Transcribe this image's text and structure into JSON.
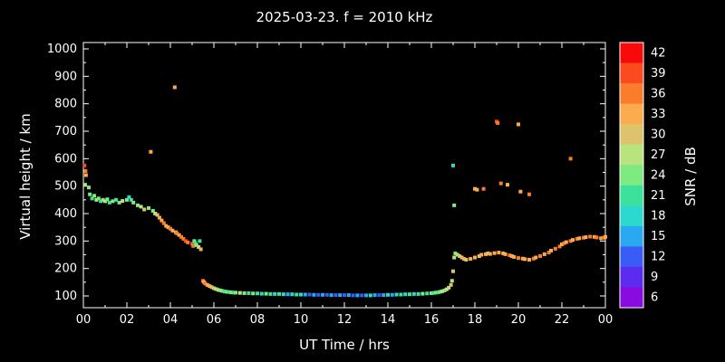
{
  "chart_data": {
    "type": "scatter",
    "title": "2025-03-23. f = 2010 kHz",
    "xlabel": "UT Time / hrs",
    "ylabel": "Virtual height / km",
    "xlim": [
      0,
      24
    ],
    "ylim": [
      50,
      1000
    ],
    "grid": false,
    "x_tick_values": [
      0,
      2,
      4,
      6,
      8,
      10,
      12,
      14,
      16,
      18,
      20,
      22,
      24
    ],
    "x_tick_labels": [
      "00",
      "02",
      "04",
      "06",
      "08",
      "10",
      "12",
      "14",
      "16",
      "18",
      "20",
      "22",
      "00"
    ],
    "y_tick_values": [
      100,
      200,
      300,
      400,
      500,
      600,
      700,
      800,
      900,
      1000
    ],
    "colorbar": {
      "label": "SNR / dB",
      "levels": [
        {
          "value": 42,
          "color": "#f80a0a"
        },
        {
          "value": 39,
          "color": "#fb4a1e"
        },
        {
          "value": 36,
          "color": "#fb7d2c"
        },
        {
          "value": 33,
          "color": "#fcab4e"
        },
        {
          "value": 30,
          "color": "#ddc46c"
        },
        {
          "value": 27,
          "color": "#b9e37f"
        },
        {
          "value": 24,
          "color": "#7fea7f"
        },
        {
          "value": 21,
          "color": "#3ce29b"
        },
        {
          "value": 18,
          "color": "#2cd9cf"
        },
        {
          "value": 15,
          "color": "#29aaf0"
        },
        {
          "value": 12,
          "color": "#3a5bf5"
        },
        {
          "value": 9,
          "color": "#5c2bf0"
        },
        {
          "value": 6,
          "color": "#8a0be0"
        }
      ]
    },
    "point_format": [
      "ut_hours",
      "virtual_height_km",
      "snr_db"
    ],
    "points": [
      [
        0.05,
        575,
        39
      ],
      [
        0.1,
        555,
        36
      ],
      [
        0.12,
        540,
        33
      ],
      [
        0.08,
        505,
        27
      ],
      [
        0.25,
        495,
        24
      ],
      [
        0.3,
        470,
        24
      ],
      [
        0.4,
        455,
        21
      ],
      [
        0.5,
        465,
        24
      ],
      [
        0.6,
        450,
        27
      ],
      [
        0.7,
        455,
        24
      ],
      [
        0.8,
        445,
        21
      ],
      [
        0.9,
        450,
        24
      ],
      [
        1.0,
        445,
        27
      ],
      [
        1.1,
        452,
        24
      ],
      [
        1.2,
        440,
        21
      ],
      [
        1.35,
        445,
        24
      ],
      [
        1.5,
        450,
        21
      ],
      [
        1.65,
        440,
        24
      ],
      [
        1.8,
        446,
        27
      ],
      [
        2.0,
        450,
        24
      ],
      [
        2.1,
        460,
        18
      ],
      [
        2.2,
        450,
        21
      ],
      [
        2.3,
        440,
        24
      ],
      [
        2.5,
        430,
        24
      ],
      [
        2.65,
        425,
        27
      ],
      [
        2.8,
        415,
        30
      ],
      [
        3.0,
        420,
        24
      ],
      [
        3.1,
        625,
        33
      ],
      [
        3.2,
        410,
        24
      ],
      [
        3.3,
        400,
        27
      ],
      [
        3.4,
        395,
        30
      ],
      [
        3.5,
        385,
        33
      ],
      [
        3.6,
        375,
        33
      ],
      [
        3.7,
        365,
        36
      ],
      [
        3.8,
        355,
        33
      ],
      [
        3.9,
        350,
        33
      ],
      [
        4.0,
        345,
        36
      ],
      [
        4.1,
        338,
        33
      ],
      [
        4.2,
        860,
        33
      ],
      [
        4.25,
        332,
        33
      ],
      [
        4.3,
        328,
        36
      ],
      [
        4.4,
        322,
        33
      ],
      [
        4.5,
        315,
        36
      ],
      [
        4.6,
        308,
        36
      ],
      [
        4.7,
        300,
        39
      ],
      [
        4.8,
        295,
        36
      ],
      [
        5.0,
        290,
        39
      ],
      [
        5.05,
        282,
        36
      ],
      [
        5.1,
        300,
        24
      ],
      [
        5.15,
        292,
        21
      ],
      [
        5.2,
        285,
        24
      ],
      [
        5.3,
        278,
        27
      ],
      [
        5.35,
        300,
        21
      ],
      [
        5.4,
        270,
        33
      ],
      [
        5.5,
        155,
        36
      ],
      [
        5.55,
        150,
        33
      ],
      [
        5.6,
        145,
        36
      ],
      [
        5.7,
        140,
        33
      ],
      [
        5.8,
        136,
        33
      ],
      [
        5.9,
        132,
        30
      ],
      [
        6.0,
        128,
        30
      ],
      [
        6.1,
        125,
        27
      ],
      [
        6.2,
        122,
        27
      ],
      [
        6.3,
        120,
        24
      ],
      [
        6.4,
        118,
        24
      ],
      [
        6.5,
        116,
        21
      ],
      [
        6.6,
        115,
        24
      ],
      [
        6.7,
        114,
        21
      ],
      [
        6.8,
        113,
        24
      ],
      [
        6.9,
        112,
        21
      ],
      [
        7.0,
        112,
        24
      ],
      [
        7.2,
        111,
        27
      ],
      [
        7.4,
        110,
        24
      ],
      [
        7.6,
        110,
        21
      ],
      [
        7.8,
        109,
        24
      ],
      [
        8.0,
        109,
        21
      ],
      [
        8.2,
        108,
        18
      ],
      [
        8.4,
        108,
        24
      ],
      [
        8.6,
        107,
        21
      ],
      [
        8.8,
        107,
        18
      ],
      [
        9.0,
        107,
        21
      ],
      [
        9.2,
        106,
        18
      ],
      [
        9.4,
        106,
        15
      ],
      [
        9.6,
        106,
        18
      ],
      [
        9.8,
        105,
        21
      ],
      [
        10.0,
        105,
        18
      ],
      [
        10.2,
        105,
        15
      ],
      [
        10.4,
        105,
        12
      ],
      [
        10.6,
        104,
        15
      ],
      [
        10.8,
        104,
        12
      ],
      [
        11.0,
        104,
        15
      ],
      [
        11.2,
        104,
        12
      ],
      [
        11.4,
        103,
        15
      ],
      [
        11.6,
        103,
        12
      ],
      [
        11.8,
        103,
        15
      ],
      [
        12.0,
        103,
        12
      ],
      [
        12.2,
        103,
        15
      ],
      [
        12.4,
        102,
        12
      ],
      [
        12.6,
        102,
        15
      ],
      [
        12.8,
        102,
        12
      ],
      [
        13.0,
        102,
        15
      ],
      [
        13.2,
        102,
        18
      ],
      [
        13.4,
        103,
        15
      ],
      [
        13.6,
        103,
        12
      ],
      [
        13.8,
        103,
        15
      ],
      [
        14.0,
        104,
        18
      ],
      [
        14.2,
        104,
        15
      ],
      [
        14.4,
        105,
        18
      ],
      [
        14.6,
        105,
        21
      ],
      [
        14.8,
        106,
        18
      ],
      [
        15.0,
        106,
        21
      ],
      [
        15.2,
        107,
        18
      ],
      [
        15.4,
        107,
        21
      ],
      [
        15.6,
        108,
        24
      ],
      [
        15.8,
        109,
        21
      ],
      [
        16.0,
        110,
        24
      ],
      [
        16.1,
        111,
        21
      ],
      [
        16.2,
        112,
        24
      ],
      [
        16.3,
        113,
        21
      ],
      [
        16.4,
        115,
        24
      ],
      [
        16.5,
        117,
        27
      ],
      [
        16.6,
        120,
        24
      ],
      [
        16.7,
        124,
        27
      ],
      [
        16.8,
        130,
        27
      ],
      [
        16.9,
        140,
        30
      ],
      [
        16.95,
        155,
        27
      ],
      [
        17.0,
        190,
        30
      ],
      [
        17.0,
        575,
        18
      ],
      [
        17.05,
        430,
        24
      ],
      [
        17.05,
        240,
        27
      ],
      [
        17.1,
        255,
        24
      ],
      [
        17.2,
        250,
        27
      ],
      [
        17.3,
        245,
        30
      ],
      [
        17.4,
        240,
        30
      ],
      [
        17.5,
        235,
        33
      ],
      [
        17.6,
        232,
        30
      ],
      [
        17.8,
        235,
        33
      ],
      [
        18.0,
        240,
        33
      ],
      [
        18.0,
        490,
        33
      ],
      [
        18.1,
        487,
        33
      ],
      [
        18.2,
        245,
        30
      ],
      [
        18.3,
        250,
        33
      ],
      [
        18.4,
        490,
        36
      ],
      [
        18.5,
        252,
        33
      ],
      [
        18.6,
        255,
        30
      ],
      [
        18.7,
        253,
        33
      ],
      [
        18.9,
        256,
        33
      ],
      [
        19.0,
        735,
        39
      ],
      [
        19.05,
        730,
        36
      ],
      [
        19.1,
        258,
        33
      ],
      [
        19.2,
        510,
        36
      ],
      [
        19.3,
        255,
        33
      ],
      [
        19.4,
        252,
        33
      ],
      [
        19.5,
        505,
        33
      ],
      [
        19.6,
        248,
        36
      ],
      [
        19.7,
        245,
        33
      ],
      [
        19.8,
        242,
        33
      ],
      [
        20.0,
        238,
        36
      ],
      [
        20.0,
        725,
        33
      ],
      [
        20.1,
        480,
        33
      ],
      [
        20.2,
        236,
        33
      ],
      [
        20.3,
        234,
        33
      ],
      [
        20.5,
        232,
        33
      ],
      [
        20.5,
        470,
        36
      ],
      [
        20.7,
        236,
        36
      ],
      [
        20.8,
        240,
        33
      ],
      [
        21.0,
        245,
        36
      ],
      [
        21.2,
        252,
        33
      ],
      [
        21.4,
        258,
        36
      ],
      [
        21.5,
        265,
        33
      ],
      [
        21.7,
        272,
        36
      ],
      [
        21.9,
        280,
        36
      ],
      [
        22.0,
        288,
        33
      ],
      [
        22.1,
        292,
        36
      ],
      [
        22.2,
        296,
        33
      ],
      [
        22.4,
        600,
        36
      ],
      [
        22.4,
        300,
        36
      ],
      [
        22.5,
        304,
        33
      ],
      [
        22.7,
        308,
        36
      ],
      [
        22.8,
        310,
        33
      ],
      [
        23.0,
        312,
        36
      ],
      [
        23.1,
        314,
        33
      ],
      [
        23.3,
        316,
        36
      ],
      [
        23.5,
        315,
        33
      ],
      [
        23.6,
        313,
        36
      ],
      [
        23.8,
        310,
        33
      ],
      [
        23.9,
        312,
        36
      ],
      [
        24.0,
        315,
        33
      ]
    ]
  }
}
